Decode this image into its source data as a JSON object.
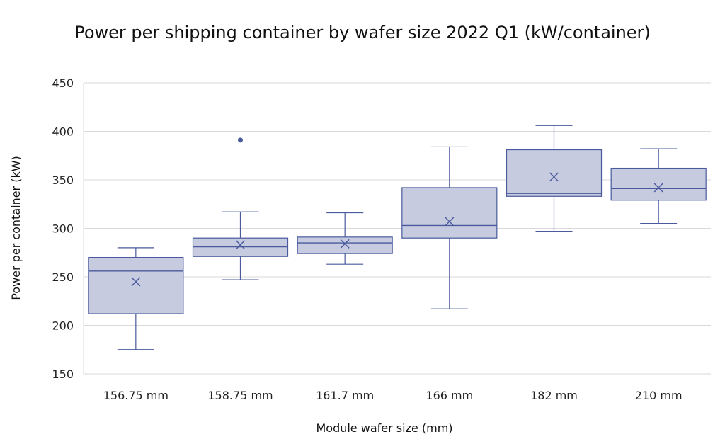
{
  "chart_data": {
    "type": "box",
    "title": "Power per shipping container by wafer size 2022 Q1 (kW/container)",
    "xlabel": "Module wafer size (mm)",
    "ylabel": "Power per container (kW)",
    "ylim": [
      150,
      450
    ],
    "yticks": [
      150,
      200,
      250,
      300,
      350,
      400,
      450
    ],
    "grid": true,
    "colors": {
      "box_fill": "#c6cbe0",
      "stroke": "#4a5a9c",
      "grid": "#d9d9d9"
    },
    "categories": [
      "156.75 mm",
      "158.75 mm",
      "161.7 mm",
      "166 mm",
      "182 mm",
      "210 mm"
    ],
    "boxes": [
      {
        "min": 175,
        "q1": 212,
        "median": 256,
        "q3": 270,
        "max": 280,
        "mean": 245,
        "outliers": []
      },
      {
        "min": 247,
        "q1": 271,
        "median": 281,
        "q3": 290,
        "max": 317,
        "mean": 283,
        "outliers": [
          391
        ]
      },
      {
        "min": 263,
        "q1": 274,
        "median": 285,
        "q3": 291,
        "max": 316,
        "mean": 284,
        "outliers": []
      },
      {
        "min": 217,
        "q1": 290,
        "median": 303,
        "q3": 342,
        "max": 384,
        "mean": 307,
        "outliers": []
      },
      {
        "min": 297,
        "q1": 333,
        "median": 336,
        "q3": 381,
        "max": 406,
        "mean": 353,
        "outliers": []
      },
      {
        "min": 305,
        "q1": 329,
        "median": 341,
        "q3": 362,
        "max": 382,
        "mean": 342,
        "outliers": []
      }
    ]
  }
}
